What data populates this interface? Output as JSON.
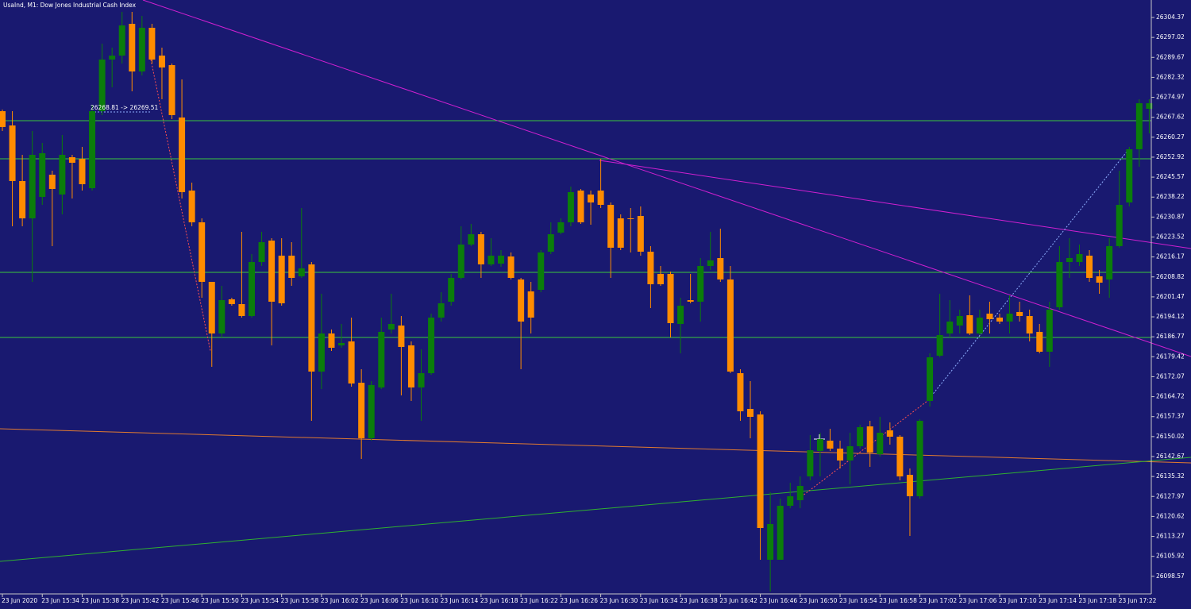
{
  "chart_data": {
    "type": "candlestick",
    "title": "UsaInd, M1:  Dow Jones Industrial Cash Index",
    "annotations": [
      "26268.81 -> 26269.51"
    ],
    "up_color": "#0b7d0b",
    "down_color": "#ff8c00",
    "categories": [
      "23 Jun 2020",
      null,
      null,
      null,
      "23 Jun 15:34",
      null,
      null,
      null,
      "23 Jun 15:38",
      null,
      null,
      null,
      "23 Jun 15:42",
      null,
      null,
      null,
      "23 Jun 15:46",
      null,
      null,
      null,
      "23 Jun 15:50",
      null,
      null,
      null,
      "23 Jun 15:54",
      null,
      null,
      null,
      "23 Jun 15:58",
      null,
      null,
      null,
      "23 Jun 16:02",
      null,
      null,
      null,
      "23 Jun 16:06",
      null,
      null,
      null,
      "23 Jun 16:10",
      null,
      null,
      null,
      "23 Jun 16:14",
      null,
      null,
      null,
      "23 Jun 16:18",
      null,
      null,
      null,
      "23 Jun 16:22",
      null,
      null,
      null,
      "23 Jun 16:26",
      null,
      null,
      null,
      "23 Jun 16:30",
      null,
      null,
      null,
      "23 Jun 16:34",
      null,
      null,
      null,
      "23 Jun 16:38",
      null,
      null,
      null,
      "23 Jun 16:42",
      null,
      null,
      null,
      "23 Jun 16:46",
      null,
      null,
      null,
      "23 Jun 16:50",
      null,
      null,
      null,
      "23 Jun 16:54",
      null,
      null,
      null,
      "23 Jun 16:58",
      null,
      null,
      null,
      "23 Jun 17:02",
      null,
      null,
      null,
      "23 Jun 17:06",
      null,
      null,
      null,
      "23 Jun 17:10",
      null,
      null,
      null,
      "23 Jun 17:14",
      null,
      null,
      null,
      "23 Jun 17:18",
      null,
      null,
      null,
      "23 Jun 17:22",
      null,
      null,
      null
    ],
    "open": [
      26269.86,
      26264.6,
      26244.13,
      26230.39,
      26238.28,
      26246.47,
      26239.16,
      26252.9,
      26252.32,
      26241.5,
      26269.86,
      26288.87,
      26290.33,
      26302.03,
      26284.48,
      26300.57,
      26290.33,
      26286.82,
      26267.52,
      26240.62,
      26228.93,
      26207.0,
      26187.99,
      26200.57,
      26198.81,
      26194.42,
      26214.31,
      26222.2,
      26216.65,
      26216.65,
      26209.04,
      26213.43,
      26173.96,
      26187.99,
      26183.61,
      26185.07,
      26169.86,
      26149.4,
      26168.11,
      26189.45,
      26190.92,
      26183.61,
      26168.11,
      26173.37,
      26193.84,
      26199.69,
      26208.46,
      26220.74,
      26224.54,
      26213.43,
      26213.72,
      26216.35,
      26207.88,
      26203.49,
      26204.07,
      26218.11,
      26225.13,
      26228.93,
      26240.62,
      26239.16,
      26240.62,
      26235.36,
      26230.39,
      26230.39,
      26231.27,
      26218.11,
      26209.92,
      26209.92,
      26191.5,
      26200.27,
      26199.69,
      26212.85,
      26215.77,
      26207.88,
      26173.37,
      26160.21,
      26158.17,
      26104.66,
      26104.66,
      26124.54,
      26126.59,
      26135.36,
      26144.72,
      26148.52,
      26145.59,
      26141.21,
      26146.47,
      26153.78,
      26143.55,
      26152.32,
      26149.98,
      26135.94,
      26128.05,
      26163.14,
      26179.81,
      26187.99,
      26190.92,
      26194.72,
      26187.99,
      26195.3,
      26193.84,
      26192.38,
      26195.89,
      26194.42,
      26188.58,
      26181.27,
      26197.64,
      26214.31,
      26214.31,
      26216.65,
      26209.04,
      26207.88,
      26220.16,
      26236.24,
      26255.83,
      26270.74
    ],
    "high": [
      26270.45,
      26269.86,
      26253.78,
      26262.55,
      26258.17,
      26247.93,
      26261.09,
      26253.78,
      26256.71,
      26272.2,
      26294.72,
      26293.26,
      26306.41,
      26306.41,
      26304.95,
      26302.03,
      26293.26,
      26287.41,
      26281.56,
      26243.55,
      26230.39,
      26207.0,
      26205.54,
      26201.15,
      26225.42,
      26217.23,
      26225.42,
      26223.08,
      26223.08,
      26221.62,
      26234.19,
      26214.31,
      26202.61,
      26189.45,
      26191.5,
      26193.84,
      26174.83,
      26170.45,
      26193.84,
      26202.61,
      26194.42,
      26185.07,
      26182.14,
      26195.3,
      26203.2,
      26209.92,
      26227.47,
      26228.34,
      26225.42,
      26223.08,
      26218.69,
      26217.82,
      26208.46,
      26207.0,
      26218.69,
      26228.93,
      26230.39,
      26242.09,
      26241.21,
      26240.62,
      26252.32,
      26236.24,
      26231.85,
      26234.19,
      26234.78,
      26220.16,
      26212.85,
      26210.8,
      26201.15,
      26209.92,
      26215.77,
      26225.42,
      26226.59,
      26212.85,
      26174.83,
      26170.45,
      26159.34,
      26129.51,
      26127.17,
      26133.02,
      26135.36,
      26150.56,
      26151.44,
      26152.9,
      26148.52,
      26151.44,
      26154.37,
      26155.83,
      26157.29,
      26155.24,
      26150.56,
      26138.28,
      26156.41,
      26180.68,
      26202.61,
      26200.27,
      26196.76,
      26202.03,
      26196.76,
      26199.69,
      26195.3,
      26202.03,
      26199.69,
      26196.76,
      26191.5,
      26199.69,
      26220.16,
      26223.08,
      26220.74,
      26218.69,
      26211.38,
      26223.08,
      26247.93,
      26256.71,
      26274.25,
      26274.25
    ],
    "low": [
      26262.55,
      26227.47,
      26227.47,
      26207.0,
      26235.36,
      26220.16,
      26231.85,
      26237.7,
      26240.62,
      26240.62,
      26268.4,
      26278.64,
      26287.41,
      26277.17,
      26283.02,
      26287.41,
      26274.25,
      26266.94,
      26237.7,
      26227.47,
      26201.15,
      26175.71,
      26186.53,
      26198.23,
      26193.84,
      26193.84,
      26212.85,
      26183.61,
      26198.23,
      26205.54,
      26208.46,
      26155.83,
      26167.52,
      26181.56,
      26182.73,
      26168.4,
      26141.79,
      26148.52,
      26167.52,
      26187.99,
      26165.19,
      26163.14,
      26155.83,
      26172.79,
      26192.38,
      26198.23,
      26207.88,
      26220.16,
      26208.46,
      26212.85,
      26212.55,
      26207.88,
      26174.83,
      26187.99,
      26203.2,
      26217.23,
      26224.54,
      26227.47,
      26228.34,
      26228.05,
      26234.19,
      26208.46,
      26218.69,
      26217.82,
      26216.65,
      26197.35,
      26205.54,
      26186.53,
      26180.68,
      26199.1,
      26192.38,
      26211.38,
      26207.0,
      26173.37,
      26155.83,
      26149.4,
      26104.66,
      26092.96,
      26104.66,
      26123.66,
      26123.66,
      26133.9,
      26135.36,
      26144.72,
      26138.28,
      26132.44,
      26145.59,
      26138.87,
      26142.67,
      26147.06,
      26133.9,
      26113.43,
      26127.17,
      26161.09,
      26179.22,
      26186.53,
      26187.99,
      26187.41,
      26187.41,
      26187.99,
      26191.5,
      26187.99,
      26192.38,
      26185.07,
      26180.68,
      26175.71,
      26196.76,
      26208.46,
      26212.85,
      26207.0,
      26202.61,
      26201.15,
      26219.57,
      26234.78,
      26249.4,
      26261.67
    ],
    "close": [
      26264.02,
      26244.13,
      26230.39,
      26253.78,
      26254.37,
      26241.21,
      26253.78,
      26250.86,
      26242.96,
      26269.86,
      26288.87,
      26290.33,
      26301.44,
      26284.48,
      26300.57,
      26288.87,
      26285.95,
      26268.4,
      26240.04,
      26228.93,
      26207.0,
      26187.99,
      26200.27,
      26198.81,
      26194.42,
      26214.31,
      26221.62,
      26199.69,
      26199.1,
      26208.46,
      26211.97,
      26173.96,
      26187.99,
      26182.73,
      26184.48,
      26169.57,
      26149.4,
      26168.99,
      26188.58,
      26191.5,
      26183.02,
      26168.11,
      26173.37,
      26193.84,
      26199.1,
      26208.46,
      26220.74,
      26224.54,
      26213.43,
      26216.65,
      26216.65,
      26208.46,
      26192.38,
      26193.84,
      26217.82,
      26224.54,
      26228.93,
      26240.04,
      26228.93,
      26236.24,
      26235.36,
      26219.57,
      26219.57,
      26230.1,
      26218.11,
      26206.12,
      26206.12,
      26191.79,
      26198.23,
      26199.69,
      26212.85,
      26214.89,
      26207.88,
      26173.96,
      26159.34,
      26157.29,
      26116.35,
      26117.82,
      26124.54,
      26128.05,
      26131.85,
      26145.01,
      26149.1,
      26145.59,
      26141.21,
      26146.47,
      26153.49,
      26144.13,
      26151.44,
      26149.98,
      26135.36,
      26128.05,
      26155.83,
      26179.22,
      26187.41,
      26192.38,
      26194.42,
      26187.99,
      26193.84,
      26193.26,
      26192.38,
      26195.3,
      26194.42,
      26187.99,
      26181.27,
      26196.76,
      26214.31,
      26215.77,
      26217.23,
      26208.46,
      26206.71,
      26220.16,
      26235.36,
      26255.83,
      26272.79,
      26272.79
    ],
    "ylim": [
      26092.08,
      26310.8
    ],
    "yticks": [
      26304.37,
      26297.02,
      26289.67,
      26282.32,
      26274.97,
      26267.62,
      26260.27,
      26252.92,
      26245.57,
      26238.22,
      26230.87,
      26223.52,
      26216.17,
      26208.82,
      26201.47,
      26194.12,
      26186.77,
      26179.42,
      26172.07,
      26164.72,
      26157.37,
      26150.02,
      26142.67,
      26135.32,
      26127.97,
      26120.62,
      26113.27,
      26105.92,
      26098.57
    ]
  }
}
